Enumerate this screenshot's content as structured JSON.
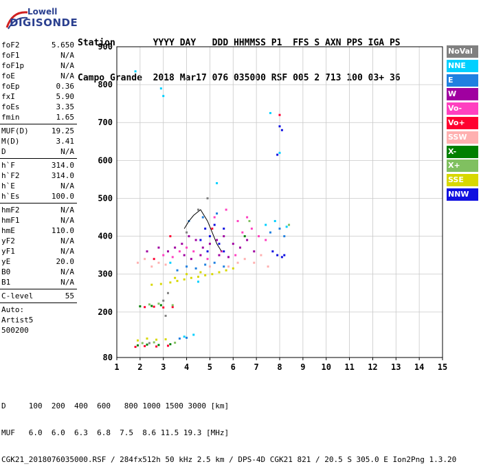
{
  "logo": {
    "line1": "Lowell",
    "line2": "DIGISONDE"
  },
  "header": {
    "row1": "Station       YYYY DAY   DDD HHMMSS P1  FFS S AXN PPS IGA PS",
    "row2": "Campo Grande  2018 Mar17 076 035000 RSF 005 2 713 100 03+ 36"
  },
  "params": [
    {
      "k": "foF2",
      "v": "5.650"
    },
    {
      "k": "foF1",
      "v": "N/A"
    },
    {
      "k": "foF1p",
      "v": "N/A"
    },
    {
      "k": "foE",
      "v": "N/A"
    },
    {
      "k": "foEp",
      "v": "0.36"
    },
    {
      "k": "fxI",
      "v": "5.90"
    },
    {
      "k": "foEs",
      "v": "3.35"
    },
    {
      "k": "fmin",
      "v": "1.65"
    },
    {
      "k": "MUF(D)",
      "v": "19.25",
      "sep": true
    },
    {
      "k": "M(D)",
      "v": "3.41"
    },
    {
      "k": "D",
      "v": "N/A"
    },
    {
      "k": "h`F",
      "v": "314.0",
      "sep": true
    },
    {
      "k": "h`F2",
      "v": "314.0"
    },
    {
      "k": "h`E",
      "v": "N/A"
    },
    {
      "k": "h`Es",
      "v": "100.0"
    },
    {
      "k": "hmF2",
      "v": "N/A",
      "sep": true
    },
    {
      "k": "hmF1",
      "v": "N/A"
    },
    {
      "k": "hmE",
      "v": "110.0"
    },
    {
      "k": "yF2",
      "v": "N/A"
    },
    {
      "k": "yF1",
      "v": "N/A"
    },
    {
      "k": "yE",
      "v": "20.0"
    },
    {
      "k": "B0",
      "v": "N/A"
    },
    {
      "k": "B1",
      "v": "N/A"
    },
    {
      "k": "C-level",
      "v": "55",
      "sep": true
    }
  ],
  "autoscaling": {
    "line1": "Auto:",
    "line2": "Artist5",
    "line3": "500200"
  },
  "legend": [
    {
      "label": "NoVal",
      "color": "#808080",
      "text_color": "#ffffff"
    },
    {
      "label": "NNE",
      "color": "#00d0ff",
      "text_color": "#ffffff"
    },
    {
      "label": "E",
      "color": "#2080e0",
      "text_color": "#ffffff"
    },
    {
      "label": "W",
      "color": "#a000a0",
      "text_color": "#ffffff"
    },
    {
      "label": "Vo-",
      "color": "#ff40c0",
      "text_color": "#ffffff"
    },
    {
      "label": "Vo+",
      "color": "#ff0030",
      "text_color": "#ffffff"
    },
    {
      "label": "SSW",
      "color": "#ffb0b0",
      "text_color": "#ffffff"
    },
    {
      "label": "X-",
      "color": "#008000",
      "text_color": "#ffffff"
    },
    {
      "label": "X+",
      "color": "#80c060",
      "text_color": "#ffffff"
    },
    {
      "label": "SSE",
      "color": "#d8d800",
      "text_color": "#ffffff"
    },
    {
      "label": "NNW",
      "color": "#1010e0",
      "text_color": "#ffffff"
    }
  ],
  "footer": {
    "row1": "D     100  200  400  600   800 1000 1500 3000 [km]",
    "row2": "MUF   6.0  6.0  6.3  6.8  7.5  8.6 11.5 19.3 [MHz]",
    "row3": "CGK21_2018076035000.RSF / 284fx512h 50 kHz 2.5 km / DPS-4D CGK21 821 / 20.5 S 305.0 E Ion2Png 1.3.20"
  },
  "chart_data": {
    "type": "scatter",
    "xlim": [
      1,
      15
    ],
    "ylim": [
      80,
      900
    ],
    "x_ticks": [
      1,
      2,
      3,
      4,
      5,
      6,
      7,
      8,
      9,
      10,
      11,
      12,
      13,
      14,
      15
    ],
    "y_ticks": [
      80,
      200,
      300,
      400,
      500,
      600,
      700,
      800,
      900
    ],
    "grid": true,
    "series": [
      {
        "name": "NNW",
        "color": "#1010e0",
        "points": [
          [
            4.8,
            420
          ],
          [
            5.0,
            400
          ],
          [
            5.2,
            430
          ],
          [
            5.4,
            380
          ],
          [
            4.6,
            390
          ],
          [
            5.6,
            360
          ],
          [
            7.9,
            350
          ],
          [
            8.1,
            345
          ],
          [
            8.2,
            350
          ],
          [
            7.7,
            360
          ],
          [
            7.9,
            615
          ],
          [
            8.1,
            680
          ],
          [
            8.0,
            690
          ],
          [
            5.6,
            420
          ],
          [
            4.9,
            360
          ]
        ]
      },
      {
        "name": "W",
        "color": "#a000a0",
        "points": [
          [
            3.2,
            360
          ],
          [
            3.5,
            370
          ],
          [
            3.8,
            380
          ],
          [
            4.1,
            400
          ],
          [
            4.4,
            390
          ],
          [
            4.7,
            370
          ],
          [
            5.0,
            380
          ],
          [
            5.3,
            390
          ],
          [
            5.6,
            400
          ],
          [
            6.0,
            380
          ],
          [
            6.3,
            370
          ],
          [
            6.6,
            390
          ],
          [
            6.9,
            360
          ],
          [
            4.2,
            340
          ],
          [
            4.6,
            350
          ],
          [
            3.9,
            350
          ],
          [
            5.4,
            350
          ],
          [
            5.8,
            345
          ],
          [
            2.3,
            360
          ],
          [
            2.8,
            370
          ]
        ]
      },
      {
        "name": "Vo-",
        "color": "#ff40c0",
        "points": [
          [
            3.0,
            350
          ],
          [
            3.4,
            345
          ],
          [
            3.7,
            360
          ],
          [
            4.0,
            370
          ],
          [
            4.3,
            360
          ],
          [
            4.9,
            340
          ],
          [
            5.5,
            360
          ],
          [
            6.1,
            350
          ],
          [
            6.4,
            410
          ],
          [
            6.8,
            420
          ],
          [
            7.1,
            400
          ],
          [
            7.4,
            390
          ],
          [
            5.2,
            450
          ],
          [
            5.7,
            470
          ],
          [
            6.2,
            440
          ],
          [
            6.6,
            450
          ]
        ]
      },
      {
        "name": "SSW",
        "color": "#ffb0b0",
        "points": [
          [
            1.9,
            330
          ],
          [
            2.2,
            340
          ],
          [
            2.5,
            320
          ],
          [
            2.8,
            330
          ],
          [
            3.1,
            325
          ],
          [
            6.2,
            330
          ],
          [
            6.5,
            340
          ],
          [
            6.9,
            330
          ],
          [
            7.2,
            350
          ],
          [
            7.5,
            320
          ],
          [
            5.8,
            320
          ],
          [
            5.0,
            320
          ]
        ]
      },
      {
        "name": "SSE",
        "color": "#d8d800",
        "points": [
          [
            2.5,
            272
          ],
          [
            2.9,
            274
          ],
          [
            3.3,
            278
          ],
          [
            3.6,
            282
          ],
          [
            3.9,
            286
          ],
          [
            4.2,
            290
          ],
          [
            4.5,
            293
          ],
          [
            4.8,
            297
          ],
          [
            5.1,
            300
          ],
          [
            5.4,
            305
          ],
          [
            5.7,
            310
          ],
          [
            6.0,
            315
          ],
          [
            3.5,
            290
          ],
          [
            4.0,
            300
          ],
          [
            4.6,
            305
          ],
          [
            1.9,
            125
          ],
          [
            2.3,
            130
          ],
          [
            2.7,
            127
          ],
          [
            3.1,
            128
          ]
        ]
      },
      {
        "name": "E",
        "color": "#2080e0",
        "points": [
          [
            3.6,
            310
          ],
          [
            4.0,
            320
          ],
          [
            4.4,
            315
          ],
          [
            4.8,
            325
          ],
          [
            5.2,
            330
          ],
          [
            5.6,
            320
          ],
          [
            4.1,
            440
          ],
          [
            4.7,
            450
          ],
          [
            5.3,
            460
          ],
          [
            7.6,
            410
          ],
          [
            8.0,
            420
          ],
          [
            8.2,
            400
          ],
          [
            3.7,
            130
          ],
          [
            4.0,
            132
          ]
        ]
      },
      {
        "name": "NNE",
        "color": "#00d0ff",
        "points": [
          [
            7.4,
            430
          ],
          [
            7.8,
            440
          ],
          [
            8.3,
            425
          ],
          [
            7.6,
            725
          ],
          [
            8.0,
            620
          ],
          [
            2.9,
            790
          ],
          [
            3.0,
            770
          ],
          [
            5.3,
            540
          ],
          [
            3.3,
            330
          ],
          [
            4.5,
            280
          ],
          [
            1.8,
            835
          ],
          [
            3.9,
            135
          ],
          [
            4.3,
            140
          ]
        ]
      },
      {
        "name": "Vo+",
        "color": "#ff0030",
        "points": [
          [
            2.2,
            213
          ],
          [
            2.6,
            214
          ],
          [
            3.0,
            212
          ],
          [
            3.4,
            213
          ],
          [
            1.8,
            108
          ],
          [
            2.2,
            110
          ],
          [
            2.7,
            109
          ],
          [
            3.2,
            111
          ],
          [
            8.0,
            720
          ],
          [
            3.3,
            400
          ],
          [
            5.1,
            420
          ],
          [
            2.6,
            340
          ]
        ]
      },
      {
        "name": "X-",
        "color": "#008000",
        "points": [
          [
            2.0,
            215
          ],
          [
            2.5,
            216
          ],
          [
            2.9,
            218
          ],
          [
            1.9,
            112
          ],
          [
            2.3,
            114
          ],
          [
            2.8,
            113
          ],
          [
            3.3,
            115
          ],
          [
            6.5,
            400
          ]
        ]
      },
      {
        "name": "X+",
        "color": "#80c060",
        "points": [
          [
            2.4,
            220
          ],
          [
            2.8,
            222
          ],
          [
            3.4,
            218
          ],
          [
            2.1,
            118
          ],
          [
            2.6,
            120
          ],
          [
            3.5,
            119
          ],
          [
            8.4,
            430
          ],
          [
            6.7,
            440
          ]
        ]
      },
      {
        "name": "NoVal",
        "color": "#808080",
        "points": [
          [
            3.0,
            230
          ],
          [
            3.1,
            190
          ],
          [
            3.2,
            250
          ],
          [
            4.5,
            470
          ],
          [
            4.9,
            500
          ],
          [
            4.0,
            410
          ],
          [
            2.4,
            118
          ]
        ]
      }
    ],
    "trace": [
      [
        3.9,
        420
      ],
      [
        4.1,
        440
      ],
      [
        4.3,
        455
      ],
      [
        4.6,
        470
      ],
      [
        4.9,
        440
      ],
      [
        5.1,
        410
      ],
      [
        5.3,
        380
      ],
      [
        5.5,
        360
      ]
    ]
  }
}
